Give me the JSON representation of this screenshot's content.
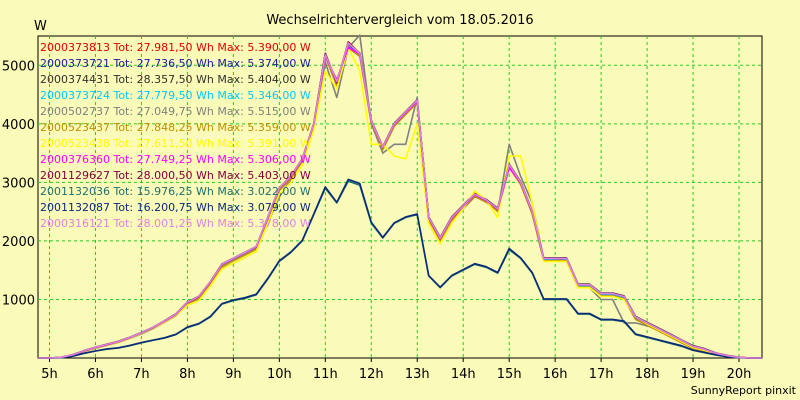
{
  "chart_data": {
    "type": "line",
    "title": "Wechselrichtervergleich vom 18.05.2016",
    "ylabel": "W",
    "footer": "SunnyReport pinxit",
    "grid": true,
    "legend_position": "top-left",
    "xlim": [
      4.75,
      20.5
    ],
    "ylim": [
      0,
      5500
    ],
    "x_ticks": [
      {
        "x": 5,
        "label": "5h"
      },
      {
        "x": 6,
        "label": "6h"
      },
      {
        "x": 7,
        "label": "7h"
      },
      {
        "x": 8,
        "label": "8h"
      },
      {
        "x": 9,
        "label": "9h"
      },
      {
        "x": 10,
        "label": "10h"
      },
      {
        "x": 11,
        "label": "11h"
      },
      {
        "x": 12,
        "label": "12h"
      },
      {
        "x": 13,
        "label": "13h"
      },
      {
        "x": 14,
        "label": "14h"
      },
      {
        "x": 15,
        "label": "15h"
      },
      {
        "x": 16,
        "label": "16h"
      },
      {
        "x": 17,
        "label": "17h"
      },
      {
        "x": 18,
        "label": "18h"
      },
      {
        "x": 19,
        "label": "19h"
      },
      {
        "x": 20,
        "label": "20h"
      }
    ],
    "y_ticks": [
      {
        "y": 1000,
        "label": "1000"
      },
      {
        "y": 2000,
        "label": "2000"
      },
      {
        "y": 3000,
        "label": "3000"
      },
      {
        "y": 4000,
        "label": "4000"
      },
      {
        "y": 5000,
        "label": "5000"
      }
    ],
    "x": [
      4.75,
      5.0,
      5.25,
      5.5,
      5.75,
      6.0,
      6.25,
      6.5,
      6.75,
      7.0,
      7.25,
      7.5,
      7.75,
      8.0,
      8.25,
      8.5,
      8.75,
      9.0,
      9.25,
      9.5,
      9.75,
      10.0,
      10.25,
      10.5,
      10.75,
      11.0,
      11.25,
      11.5,
      11.75,
      12.0,
      12.25,
      12.5,
      12.75,
      13.0,
      13.25,
      13.5,
      13.75,
      14.0,
      14.25,
      14.5,
      14.75,
      15.0,
      15.25,
      15.5,
      15.75,
      16.0,
      16.25,
      16.5,
      16.75,
      17.0,
      17.25,
      17.5,
      17.75,
      18.0,
      18.25,
      18.5,
      18.75,
      19.0,
      19.25,
      19.5,
      19.75,
      20.0,
      20.25,
      20.5
    ],
    "series": [
      {
        "name": "2000373813 Tot: 27.981,50 Wh Max: 5.390,00 W",
        "color": "#e00000",
        "values": [
          0,
          0,
          10,
          50,
          120,
          180,
          230,
          280,
          350,
          430,
          520,
          630,
          750,
          950,
          1050,
          1300,
          1600,
          1700,
          1800,
          1900,
          2400,
          2900,
          3100,
          3400,
          4000,
          5200,
          4700,
          5350,
          5200,
          4050,
          3600,
          4000,
          4200,
          4400,
          2400,
          2050,
          2400,
          2600,
          2800,
          2700,
          2550,
          3300,
          3000,
          2500,
          1700,
          1700,
          1700,
          1250,
          1250,
          1100,
          1100,
          1050,
          700,
          600,
          500,
          400,
          300,
          200,
          150,
          80,
          40,
          10,
          0,
          0
        ]
      },
      {
        "name": "2000373721 Tot: 27.736,50 Wh Max: 5.374,00 W",
        "color": "#1a1aa0",
        "values": [
          0,
          0,
          10,
          50,
          115,
          175,
          225,
          275,
          345,
          425,
          515,
          620,
          740,
          940,
          1040,
          1290,
          1590,
          1690,
          1790,
          1890,
          2390,
          2890,
          3090,
          3390,
          3990,
          5190,
          4690,
          5330,
          5190,
          4040,
          3590,
          3990,
          4190,
          4390,
          2390,
          2040,
          2390,
          2590,
          2790,
          2690,
          2540,
          3290,
          2990,
          2490,
          1690,
          1690,
          1690,
          1240,
          1240,
          1090,
          1090,
          1040,
          690,
          590,
          490,
          390,
          290,
          190,
          140,
          75,
          35,
          10,
          0,
          0
        ]
      },
      {
        "name": "2000374431 Tot: 28.357,50 Wh Max: 5.404,00 W",
        "color": "#303030",
        "values": [
          0,
          0,
          12,
          55,
          125,
          185,
          235,
          285,
          355,
          435,
          525,
          635,
          755,
          955,
          1055,
          1305,
          1605,
          1705,
          1805,
          1905,
          2405,
          2905,
          3105,
          3405,
          4005,
          5200,
          4700,
          5360,
          5210,
          4060,
          3610,
          4010,
          4210,
          4410,
          2410,
          2060,
          2410,
          2610,
          2810,
          2710,
          2560,
          3310,
          3010,
          2510,
          1710,
          1710,
          1710,
          1260,
          1260,
          1110,
          1110,
          1060,
          710,
          610,
          510,
          410,
          310,
          210,
          160,
          85,
          45,
          12,
          0,
          0
        ]
      },
      {
        "name": "2000373724 Tot: 27.779,50 Wh Max: 5.346,00 W",
        "color": "#00c8ff",
        "values": [
          0,
          0,
          8,
          45,
          110,
          170,
          220,
          270,
          340,
          420,
          510,
          615,
          735,
          935,
          1035,
          1285,
          1585,
          1685,
          1785,
          1885,
          2385,
          2885,
          3085,
          3385,
          3985,
          5180,
          4680,
          5320,
          5180,
          4030,
          3580,
          3980,
          4180,
          4380,
          2380,
          2030,
          2380,
          2580,
          2780,
          2680,
          2530,
          3280,
          2980,
          2480,
          1680,
          1680,
          1680,
          1230,
          1230,
          1080,
          1080,
          1030,
          680,
          580,
          480,
          380,
          280,
          180,
          130,
          70,
          30,
          8,
          0,
          0
        ]
      },
      {
        "name": "2000502737 Tot: 27.049,75 Wh Max: 5.515,00 W",
        "color": "#808080",
        "values": [
          0,
          0,
          10,
          45,
          110,
          165,
          215,
          265,
          335,
          410,
          500,
          605,
          720,
          910,
          990,
          1230,
          1530,
          1620,
          1720,
          1820,
          2300,
          2750,
          3050,
          3400,
          4000,
          5050,
          4450,
          5300,
          5515,
          4000,
          3500,
          3650,
          3650,
          4450,
          2300,
          1950,
          2350,
          2550,
          2750,
          2700,
          2500,
          3650,
          3100,
          2650,
          1700,
          1700,
          1650,
          1200,
          1200,
          1000,
          1000,
          600,
          600,
          550,
          480,
          380,
          280,
          180,
          130,
          70,
          30,
          10,
          0,
          0
        ]
      },
      {
        "name": "2000523437 Tot: 27.848,25 Wh Max: 5.359,00 W",
        "color": "#c09000",
        "values": [
          0,
          0,
          10,
          48,
          112,
          172,
          222,
          272,
          342,
          422,
          512,
          618,
          738,
          930,
          1020,
          1260,
          1560,
          1660,
          1760,
          1860,
          2360,
          2860,
          3060,
          3360,
          3960,
          5150,
          4650,
          5300,
          5150,
          4010,
          3560,
          3960,
          4160,
          4360,
          2360,
          2010,
          2360,
          2560,
          2760,
          2660,
          2510,
          3260,
          2960,
          2460,
          1660,
          1660,
          1660,
          1210,
          1210,
          1060,
          1060,
          1010,
          660,
          560,
          460,
          360,
          260,
          160,
          110,
          60,
          25,
          8,
          0,
          0
        ]
      },
      {
        "name": "2000523438 Tot: 27.611,50 Wh Max: 5.391,00 W",
        "color": "#ffff00",
        "values": [
          0,
          0,
          10,
          45,
          110,
          170,
          220,
          270,
          340,
          420,
          510,
          610,
          730,
          900,
          980,
          1230,
          1520,
          1620,
          1720,
          1820,
          2300,
          2800,
          3000,
          3300,
          3900,
          4900,
          4600,
          5300,
          4900,
          3650,
          3650,
          3450,
          3400,
          4000,
          2300,
          1950,
          2300,
          2550,
          2850,
          2700,
          2400,
          3450,
          3450,
          2650,
          1650,
          1650,
          1650,
          1200,
          1200,
          1050,
          1050,
          1000,
          700,
          580,
          480,
          380,
          280,
          180,
          130,
          70,
          30,
          8,
          0,
          0
        ]
      },
      {
        "name": "2000376360 Tot: 27.749,25 Wh Max: 5.306,00 W",
        "color": "#ff00ff",
        "values": [
          0,
          0,
          12,
          50,
          118,
          178,
          228,
          278,
          348,
          428,
          518,
          625,
          745,
          945,
          1045,
          1295,
          1595,
          1695,
          1795,
          1895,
          2395,
          2895,
          3095,
          3395,
          3995,
          5150,
          4750,
          5306,
          5190,
          4040,
          3600,
          3990,
          4190,
          4380,
          2390,
          2040,
          2390,
          2590,
          2790,
          2690,
          2540,
          3250,
          2990,
          2490,
          1700,
          1700,
          1700,
          1250,
          1250,
          1100,
          1100,
          1050,
          700,
          600,
          500,
          400,
          300,
          200,
          150,
          80,
          40,
          10,
          0,
          0
        ]
      },
      {
        "name": "2001129627 Tot: 28.000,50 Wh Max: 5.403,00 W",
        "color": "#800040",
        "values": [
          0,
          0,
          10,
          50,
          120,
          180,
          230,
          280,
          350,
          430,
          520,
          630,
          750,
          950,
          1050,
          1300,
          1600,
          1700,
          1800,
          1900,
          2400,
          2900,
          3100,
          3400,
          4000,
          5200,
          4700,
          5400,
          5200,
          4050,
          3600,
          4000,
          4200,
          4400,
          2400,
          2050,
          2400,
          2600,
          2800,
          2700,
          2550,
          3300,
          3000,
          2500,
          1700,
          1700,
          1700,
          1250,
          1250,
          1100,
          1100,
          1050,
          700,
          600,
          500,
          400,
          300,
          200,
          150,
          80,
          40,
          10,
          0,
          0
        ]
      },
      {
        "name": "2001132036 Tot: 15.976,25 Wh Max: 3.022,00 W",
        "color": "#1f6f6f",
        "values": [
          0,
          0,
          5,
          30,
          80,
          120,
          150,
          170,
          210,
          260,
          300,
          340,
          400,
          520,
          580,
          700,
          920,
          980,
          1020,
          1080,
          1350,
          1650,
          1800,
          2000,
          2450,
          2900,
          2650,
          3022,
          2950,
          2300,
          2050,
          2300,
          2400,
          2450,
          1400,
          1200,
          1400,
          1500,
          1600,
          1550,
          1450,
          1850,
          1700,
          1450,
          1000,
          1000,
          1000,
          750,
          750,
          650,
          650,
          620,
          400,
          350,
          300,
          250,
          200,
          130,
          90,
          50,
          20,
          5,
          0,
          0
        ]
      },
      {
        "name": "2001132087 Tot: 16.200,75 Wh Max: 3.079,00 W",
        "color": "#0a2a7a",
        "values": [
          0,
          0,
          5,
          30,
          80,
          120,
          155,
          175,
          215,
          265,
          305,
          345,
          405,
          530,
          590,
          710,
          930,
          990,
          1030,
          1090,
          1360,
          1660,
          1810,
          2010,
          2460,
          2920,
          2660,
          3050,
          2980,
          2320,
          2060,
          2310,
          2410,
          2460,
          1410,
          1210,
          1410,
          1510,
          1610,
          1560,
          1460,
          1870,
          1710,
          1460,
          1010,
          1010,
          1010,
          760,
          760,
          660,
          660,
          630,
          410,
          360,
          310,
          260,
          210,
          135,
          95,
          55,
          22,
          5,
          0,
          0
        ]
      },
      {
        "name": "2000316121 Tot: 28.001,25 Wh Max: 5.378,00 W",
        "color": "#e080e0",
        "values": [
          0,
          0,
          12,
          52,
          122,
          182,
          232,
          282,
          352,
          432,
          522,
          632,
          752,
          952,
          1052,
          1302,
          1602,
          1702,
          1802,
          1902,
          2402,
          2902,
          3102,
          3402,
          4002,
          5180,
          4720,
          5378,
          5200,
          4050,
          3600,
          4000,
          4200,
          4400,
          2400,
          2050,
          2400,
          2600,
          2800,
          2700,
          2550,
          3300,
          3000,
          2500,
          1700,
          1700,
          1700,
          1250,
          1250,
          1100,
          1100,
          1050,
          700,
          600,
          500,
          400,
          300,
          200,
          150,
          80,
          40,
          10,
          0,
          0
        ]
      }
    ]
  }
}
